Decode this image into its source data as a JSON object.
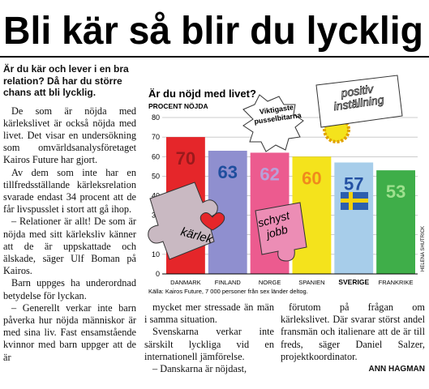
{
  "article": {
    "headline": "Bli kär så blir du lycklig",
    "lead": "Är du kär och lever i en bra relation? Då har du större chans att bli lycklig.",
    "columns": [
      [
        "De som är nöjda med kärlekslivet är också nöjda med livet. Det visar en undersökning som omvärldsanalysföretaget Kairos Future har gjort.",
        "Av dem som inte har en tillfredsställande kärleksrelation svarade endast 34 procent att de får livspusslet i stort att gå ihop.",
        "– Relationer är allt! De som är nöjda med sitt kärleksliv känner att de är uppskattade och älskade, säger Ulf Boman på Kairos.",
        "Barn uppges ha underordnad betydelse för lyckan.",
        "– Generellt verkar inte barn påverka hur nöjda människor är med sina liv. Fast ensamstående kvinnor med barn uppger att de är"
      ],
      [
        "mycket mer stressade än män i samma situation.",
        "Svenskarna verkar inte särskilt lyckliga vid en internationell jämförelse.",
        "– Danskarna är nöjdast,"
      ],
      [
        "förutom på frågan om kärlekslivet. Där svarar störst andel fransmän och italienare att de är till freds, säger Daniel Salzer, projektkoordinator."
      ]
    ],
    "byline": "ANN HAGMAN"
  },
  "chart_data": {
    "type": "bar",
    "title": "Är du nöjd med livet?",
    "y_label": "PROCENT NÖJDA",
    "categories": [
      "DANMARK",
      "FINLAND",
      "NORGE",
      "SPANIEN",
      "SVERIGE",
      "FRANKRIKE"
    ],
    "values": [
      70,
      63,
      62,
      60,
      57,
      53
    ],
    "colors": [
      "#e5262a",
      "#8f8fcf",
      "#ec5b8f",
      "#f4e31c",
      "#a7cdea",
      "#3fae49"
    ],
    "label_colors": [
      "#9a1a1c",
      "#1f4e9e",
      "#b9a0d8",
      "#f08a1c",
      "#2451a3",
      "#9ee08e"
    ],
    "ylim": [
      0,
      80
    ],
    "yticks": [
      0,
      10,
      20,
      30,
      40,
      50,
      60,
      70,
      80
    ],
    "grid": true,
    "source": "Källa: Kairos Future, 7 000 personer från sex länder deltog.",
    "credit": "HELENA SHUTRICK",
    "annotations": {
      "badge": [
        "Viktigaste",
        "pusselbitarna"
      ],
      "positive": [
        "positiv",
        "inställning"
      ],
      "love": "kärlek",
      "job": [
        "schyst",
        "jobb"
      ]
    }
  }
}
